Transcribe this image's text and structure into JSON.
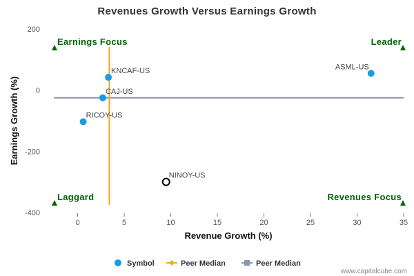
{
  "chart_data": {
    "type": "scatter",
    "title": "Revenues Growth Versus Earnings Growth",
    "xlabel": "Revenue Growth (%)",
    "ylabel": "Earnings Growth (%)",
    "xlim": [
      -3,
      35
    ],
    "ylim": [
      -400,
      200
    ],
    "x_ticks": [
      0,
      5,
      10,
      15,
      20,
      25,
      30,
      35
    ],
    "y_ticks": [
      200,
      0,
      -200,
      -400
    ],
    "grid": false,
    "points": [
      {
        "label": "ASML-US",
        "x": 31.5,
        "y": 55,
        "style": "filled"
      },
      {
        "label": "KNCAF-US",
        "x": 3.3,
        "y": 42,
        "style": "filled"
      },
      {
        "label": "CAJ-US",
        "x": 2.7,
        "y": -25,
        "style": "filled"
      },
      {
        "label": "RICOY-US",
        "x": 0.6,
        "y": -103,
        "style": "filled"
      },
      {
        "label": "NINOY-US",
        "x": 9.5,
        "y": -300,
        "style": "hollow"
      }
    ],
    "peer_median_x": 3.4,
    "peer_median_y": -25,
    "quadrants": {
      "top_left": "Earnings Focus",
      "top_right": "Leader",
      "bottom_left": "Laggard",
      "bottom_right": "Revenues Focus"
    },
    "legend": [
      {
        "label": "Symbol",
        "color": "#1a9be6"
      },
      {
        "label": "Peer Median",
        "color": "#f5a623"
      },
      {
        "label": "Peer Median",
        "color": "#8c96a8"
      }
    ],
    "legend_position": "bottom",
    "colors": {
      "point": "#1a9be6",
      "median_x_line": "#f5a623",
      "median_y_line": "#8c96a8",
      "quadrant": "#006400"
    }
  },
  "credit": "www.capitalcube.com"
}
